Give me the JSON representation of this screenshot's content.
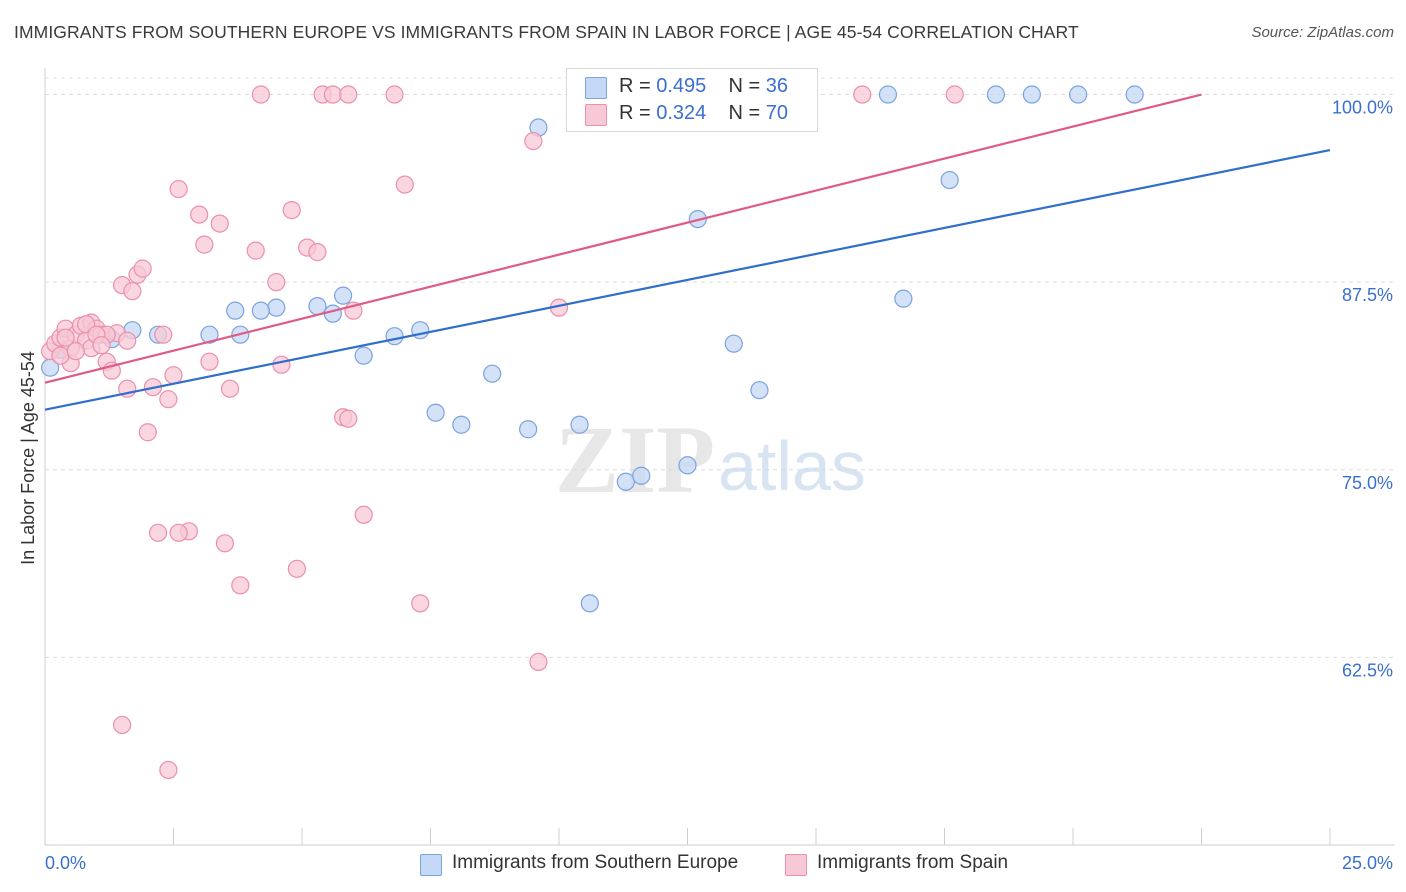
{
  "title": "IMMIGRANTS FROM SOUTHERN EUROPE VS IMMIGRANTS FROM SPAIN IN LABOR FORCE | AGE 45-54 CORRELATION CHART",
  "source": "Source: ZipAtlas.com",
  "watermark": {
    "zip": "ZIP",
    "atlas": "atlas"
  },
  "colors": {
    "blue_fill": "#c5d8f5",
    "blue_stroke": "#7aa3e0",
    "blue_line": "#2f6fcc",
    "pink_fill": "#f7c8d6",
    "pink_stroke": "#ec8fab",
    "pink_line": "#e05a86",
    "axis_label": "#3a6fd0",
    "grid": "#dcdcdc"
  },
  "legend": [
    {
      "r_label": "R =",
      "r_value": "0.495",
      "n_label": "N =",
      "n_value": "36"
    },
    {
      "r_label": "R =",
      "r_value": "0.324",
      "n_label": "N =",
      "n_value": "70"
    }
  ],
  "chart_data": {
    "type": "scatter",
    "title": "IMMIGRANTS FROM SOUTHERN EUROPE VS IMMIGRANTS FROM SPAIN IN LABOR FORCE | AGE 45-54 CORRELATION CHART",
    "xlabel": "",
    "ylabel": "In Labor Force | Age 45-54",
    "xlim": [
      0,
      25
    ],
    "ylim": [
      50,
      101.5
    ],
    "x_tick_labels": [
      "0.0%",
      "25.0%"
    ],
    "y_ticks": [
      62.5,
      75.0,
      87.5,
      100.0
    ],
    "y_tick_labels": [
      "62.5%",
      "75.0%",
      "87.5%",
      "100.0%"
    ],
    "series": [
      {
        "name": "Immigrants from Southern Europe",
        "color": "blue",
        "trend": {
          "x": [
            0,
            25
          ],
          "y": [
            79.0,
            96.3
          ]
        },
        "points": [
          [
            0.1,
            81.8
          ],
          [
            0.3,
            83.0
          ],
          [
            1.3,
            83.7
          ],
          [
            1.7,
            84.3
          ],
          [
            2.2,
            84.0
          ],
          [
            3.2,
            84.0
          ],
          [
            3.8,
            84.0
          ],
          [
            3.7,
            85.6
          ],
          [
            4.5,
            85.8
          ],
          [
            4.2,
            85.6
          ],
          [
            5.3,
            85.9
          ],
          [
            5.6,
            85.4
          ],
          [
            5.8,
            86.6
          ],
          [
            6.2,
            82.6
          ],
          [
            6.8,
            83.9
          ],
          [
            7.3,
            84.3
          ],
          [
            7.6,
            78.8
          ],
          [
            8.1,
            78.0
          ],
          [
            8.7,
            81.4
          ],
          [
            9.4,
            77.7
          ],
          [
            9.6,
            97.8
          ],
          [
            10.4,
            78.0
          ],
          [
            11.3,
            74.2
          ],
          [
            11.6,
            74.6
          ],
          [
            12.5,
            75.3
          ],
          [
            12.7,
            91.7
          ],
          [
            13.4,
            83.4
          ],
          [
            13.9,
            80.3
          ],
          [
            16.4,
            100.0
          ],
          [
            16.7,
            86.4
          ],
          [
            17.6,
            94.3
          ],
          [
            18.5,
            100.0
          ],
          [
            19.2,
            100.0
          ],
          [
            20.1,
            100.0
          ],
          [
            21.2,
            100.0
          ],
          [
            10.6,
            66.1
          ]
        ]
      },
      {
        "name": "Immigrants from Spain",
        "color": "pink",
        "trend": {
          "x": [
            0,
            22.5
          ],
          "y": [
            80.8,
            100.0
          ]
        },
        "points": [
          [
            0.1,
            82.9
          ],
          [
            0.2,
            83.4
          ],
          [
            0.3,
            83.8
          ],
          [
            0.4,
            84.4
          ],
          [
            0.5,
            83.1
          ],
          [
            0.6,
            84.0
          ],
          [
            0.7,
            84.6
          ],
          [
            0.8,
            83.6
          ],
          [
            0.9,
            84.8
          ],
          [
            1.0,
            84.4
          ],
          [
            1.1,
            84.0
          ],
          [
            1.2,
            82.2
          ],
          [
            1.3,
            81.6
          ],
          [
            1.4,
            84.1
          ],
          [
            1.5,
            87.3
          ],
          [
            1.6,
            83.6
          ],
          [
            1.7,
            86.9
          ],
          [
            1.8,
            88.0
          ],
          [
            1.9,
            88.4
          ],
          [
            2.0,
            77.5
          ],
          [
            2.1,
            80.5
          ],
          [
            2.3,
            84.0
          ],
          [
            2.4,
            79.7
          ],
          [
            2.5,
            81.3
          ],
          [
            2.6,
            93.7
          ],
          [
            2.8,
            70.9
          ],
          [
            3.0,
            92.0
          ],
          [
            3.1,
            90.0
          ],
          [
            3.2,
            82.2
          ],
          [
            3.4,
            91.4
          ],
          [
            3.6,
            80.4
          ],
          [
            3.8,
            67.3
          ],
          [
            4.1,
            89.6
          ],
          [
            4.2,
            100.0
          ],
          [
            4.5,
            87.5
          ],
          [
            4.6,
            82.0
          ],
          [
            4.8,
            92.3
          ],
          [
            4.9,
            68.4
          ],
          [
            5.1,
            89.8
          ],
          [
            5.3,
            89.5
          ],
          [
            5.4,
            100.0
          ],
          [
            5.6,
            100.0
          ],
          [
            5.9,
            100.0
          ],
          [
            5.8,
            78.5
          ],
          [
            5.9,
            78.4
          ],
          [
            6.0,
            85.6
          ],
          [
            6.2,
            72.0
          ],
          [
            6.8,
            100.0
          ],
          [
            7.0,
            94.0
          ],
          [
            7.3,
            66.1
          ],
          [
            9.5,
            96.9
          ],
          [
            9.6,
            62.2
          ],
          [
            10.0,
            85.8
          ],
          [
            15.9,
            100.0
          ],
          [
            17.7,
            100.0
          ],
          [
            1.5,
            58.0
          ],
          [
            2.4,
            55.0
          ],
          [
            2.2,
            70.8
          ],
          [
            3.5,
            70.1
          ],
          [
            2.6,
            70.8
          ],
          [
            0.5,
            82.1
          ],
          [
            0.3,
            82.6
          ],
          [
            1.2,
            84.0
          ],
          [
            1.6,
            80.4
          ],
          [
            0.8,
            84.7
          ],
          [
            0.4,
            83.8
          ],
          [
            0.9,
            83.1
          ],
          [
            1.0,
            84.0
          ],
          [
            0.6,
            82.9
          ],
          [
            1.1,
            83.3
          ]
        ]
      }
    ]
  },
  "bottom_legend": [
    "Immigrants from Southern Europe",
    "Immigrants from Spain"
  ]
}
